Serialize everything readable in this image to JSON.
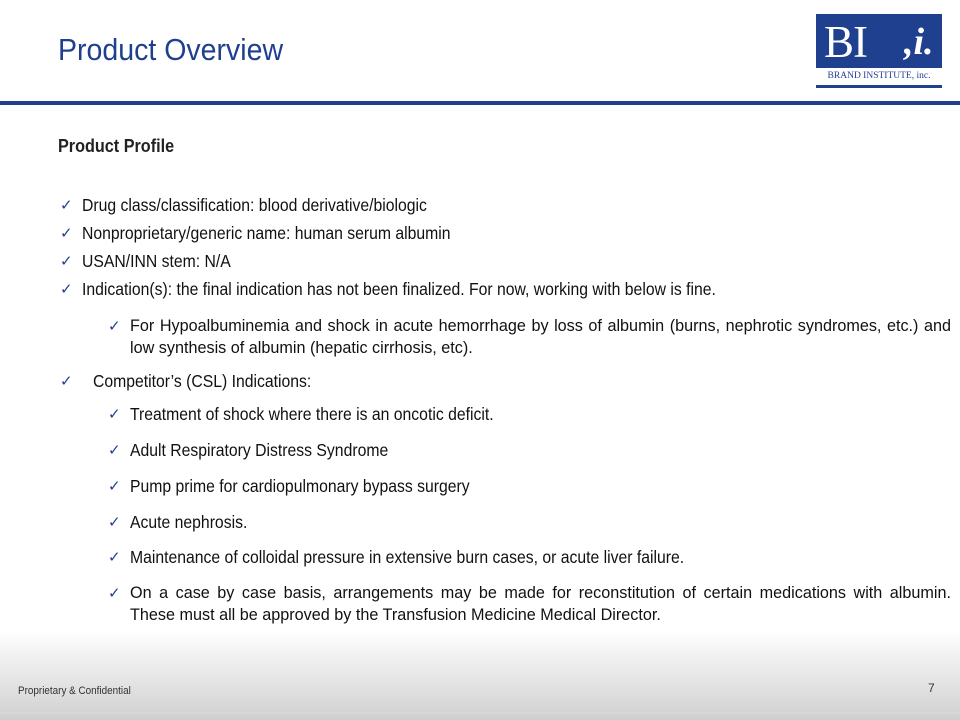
{
  "slide": {
    "title": "Product Overview",
    "logo": {
      "mark": "BI",
      "accent": ",i.",
      "subtitle": "BRAND INSTITUTE, inc."
    },
    "section_heading": "Product Profile",
    "items": [
      "Drug class/classification: blood derivative/biologic",
      "Nonproprietary/generic name: human serum albumin",
      "USAN/INN  stem: N/A",
      "Indication(s): the final indication has not been finalized. For now, working with below is fine."
    ],
    "indication_sub": "For Hypoalbuminemia and shock in acute hemorrhage by loss of albumin (burns, nephrotic syndromes, etc.) and low synthesis of albumin (hepatic cirrhosis, etc).",
    "competitor_heading": "Competitor’s (CSL) Indications:",
    "competitor_items": [
      "Treatment of shock where there is an oncotic deficit.",
      "Adult Respiratory Distress Syndrome",
      "Pump prime for cardiopulmonary bypass surgery",
      "Acute nephrosis.",
      "Maintenance of colloidal pressure in extensive burn cases, or acute liver failure.",
      "On a case by case basis, arrangements may be made for reconstitution of certain medications with albumin. These must all be approved by the Transfusion Medicine Medical Director."
    ],
    "check_icon": "checkmark-icon",
    "footer": "Proprietary & Confidential",
    "page_number": "7"
  },
  "colors": {
    "brand_blue": "#1f3f8f"
  }
}
